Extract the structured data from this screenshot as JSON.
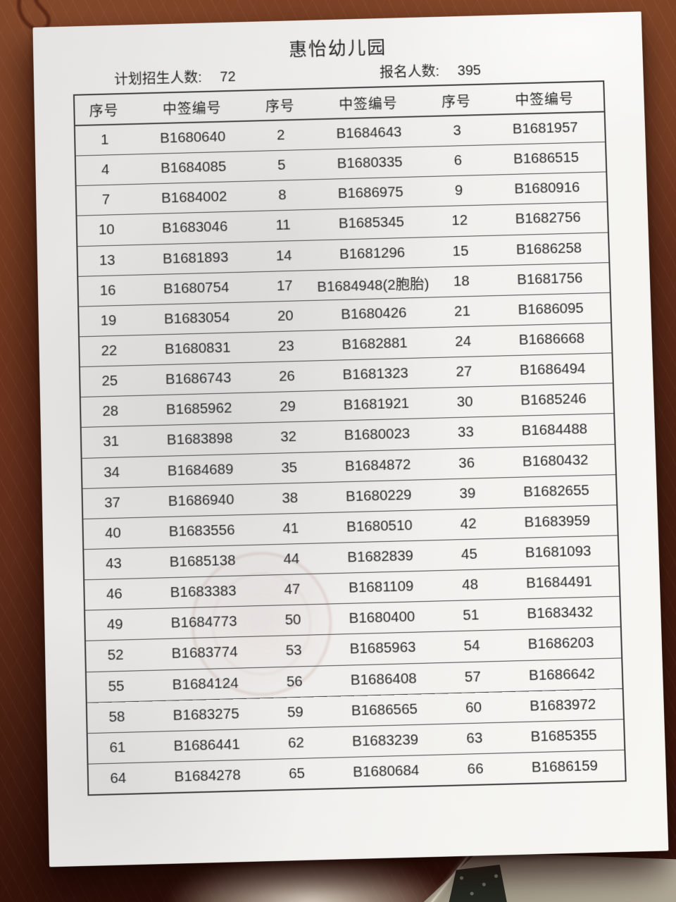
{
  "page": {
    "title": "惠怡幼儿园",
    "planned_label": "计划招生人数:",
    "planned_value": "72",
    "applicants_label": "报名人数:",
    "applicants_value": "395"
  },
  "table": {
    "headers": [
      "序号",
      "中签编号",
      "序号",
      "中签编号",
      "序号",
      "中签编号"
    ],
    "rows": [
      [
        "1",
        "B1680640",
        "2",
        "B1684643",
        "3",
        "B1681957"
      ],
      [
        "4",
        "B1684085",
        "5",
        "B1680335",
        "6",
        "B1686515"
      ],
      [
        "7",
        "B1684002",
        "8",
        "B1686975",
        "9",
        "B1680916"
      ],
      [
        "10",
        "B1683046",
        "11",
        "B1685345",
        "12",
        "B1682756"
      ],
      [
        "13",
        "B1681893",
        "14",
        "B1681296",
        "15",
        "B1686258"
      ],
      [
        "16",
        "B1680754",
        "17",
        "B1684948(2胞胎)",
        "18",
        "B1681756"
      ],
      [
        "19",
        "B1683054",
        "20",
        "B1680426",
        "21",
        "B1686095"
      ],
      [
        "22",
        "B1680831",
        "23",
        "B1682881",
        "24",
        "B1686668"
      ],
      [
        "25",
        "B1686743",
        "26",
        "B1681323",
        "27",
        "B1686494"
      ],
      [
        "28",
        "B1685962",
        "29",
        "B1681921",
        "30",
        "B1685246"
      ],
      [
        "31",
        "B1683898",
        "32",
        "B1680023",
        "33",
        "B1684488"
      ],
      [
        "34",
        "B1684689",
        "35",
        "B1684872",
        "36",
        "B1680432"
      ],
      [
        "37",
        "B1686940",
        "38",
        "B1680229",
        "39",
        "B1682655"
      ],
      [
        "40",
        "B1683556",
        "41",
        "B1680510",
        "42",
        "B1683959"
      ],
      [
        "43",
        "B1685138",
        "44",
        "B1682839",
        "45",
        "B1681093"
      ],
      [
        "46",
        "B1683383",
        "47",
        "B1681109",
        "48",
        "B1684491"
      ],
      [
        "49",
        "B1684773",
        "50",
        "B1680400",
        "51",
        "B1683432"
      ],
      [
        "52",
        "B1683774",
        "53",
        "B1685963",
        "54",
        "B1686203"
      ],
      [
        "55",
        "B1684124",
        "56",
        "B1686408",
        "57",
        "B1686642"
      ],
      [
        "58",
        "B1683275",
        "59",
        "B1686565",
        "60",
        "B1683972"
      ],
      [
        "61",
        "B1686441",
        "62",
        "B1683239",
        "63",
        "B1685355"
      ],
      [
        "64",
        "B1684278",
        "65",
        "B1680684",
        "66",
        "B1686159"
      ]
    ]
  },
  "colors": {
    "wood_base": "#66301c",
    "wood_dark": "#34100a",
    "paper": "#f0efec",
    "text": "#2e2e30",
    "grid_line": "#4b4b4d",
    "stamp": "#ba8b86",
    "beige_surface": "#b0a795",
    "glare": "#f3e9d8"
  }
}
